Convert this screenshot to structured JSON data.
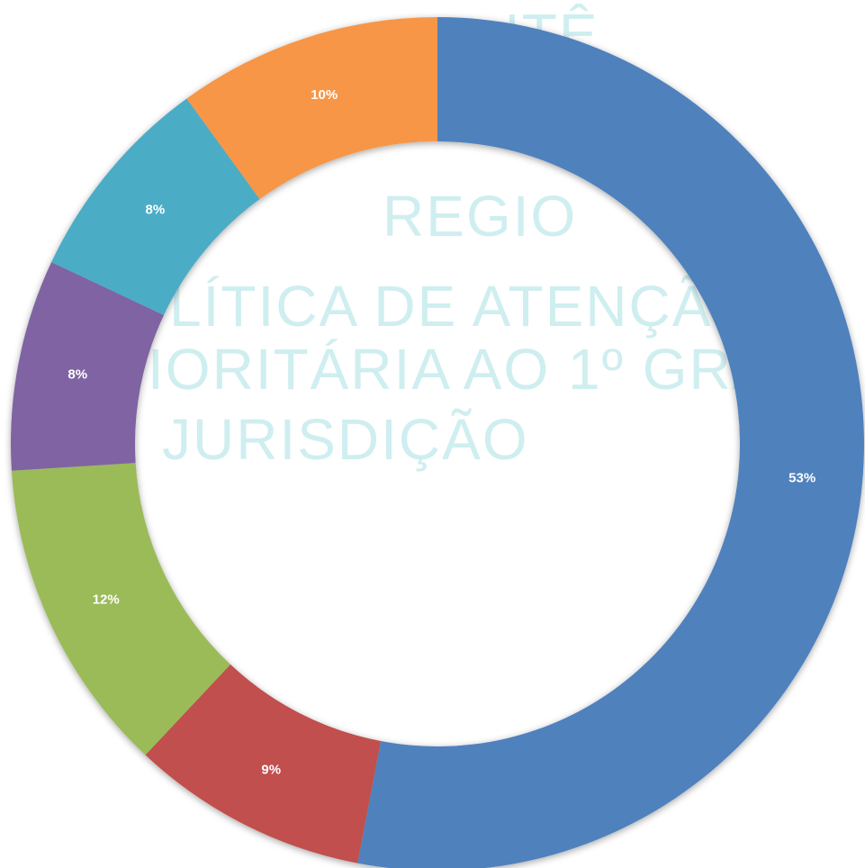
{
  "watermark": [
    "ITÊ",
    "REGIO",
    "LÍTICA DE ATENÇÃO",
    "IORITÁRIA AO 1º GRA",
    "JURISDIÇÃO"
  ],
  "chart_data": {
    "type": "donut",
    "values": [
      53,
      9,
      12,
      8,
      8,
      10
    ],
    "value_labels": [
      "53%",
      "9%",
      "12%",
      "8%",
      "8%",
      "10%"
    ],
    "colors": [
      "#4f81bd",
      "#c0504d",
      "#9bbb59",
      "#8064a2",
      "#4bacc6",
      "#f79646"
    ]
  }
}
